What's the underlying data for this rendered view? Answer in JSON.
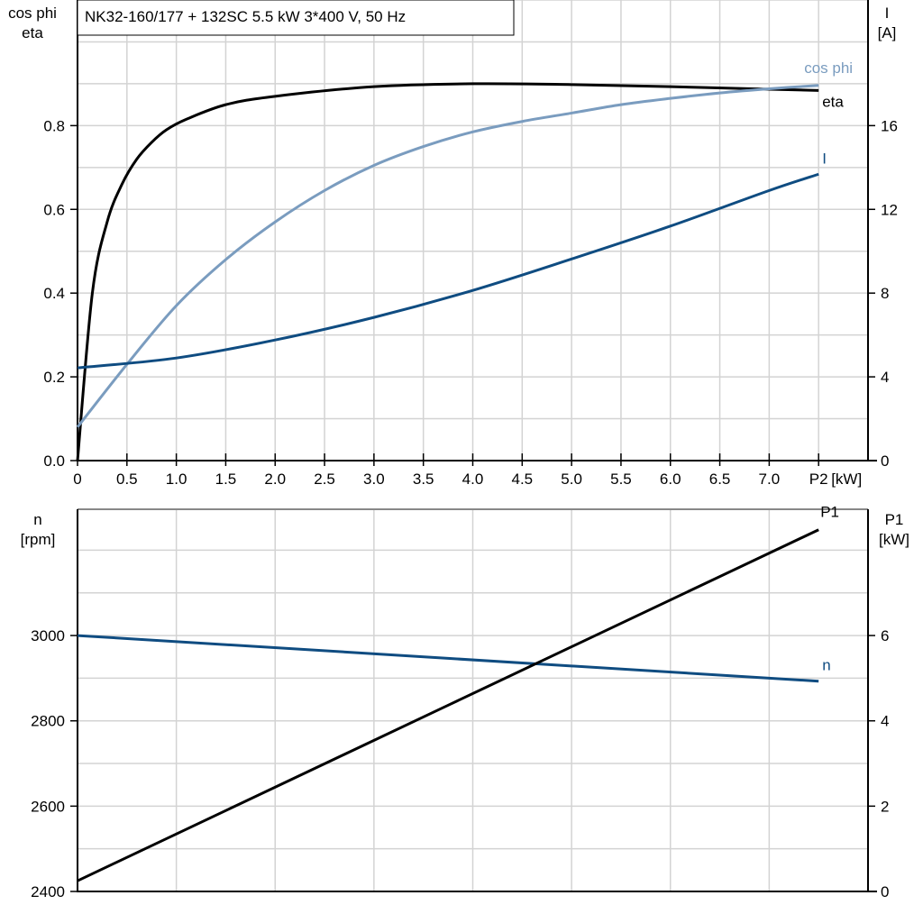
{
  "chart_data": [
    {
      "type": "line",
      "title": "NK32-160/177 + 132SC   5.5 kW   3*400 V, 50 Hz",
      "xlabel": "P2 [kW]",
      "xlabel_short": "P2",
      "xunit": "[kW]",
      "xlim": [
        0,
        8
      ],
      "xticks": [
        0,
        0.5,
        1.0,
        1.5,
        2.0,
        2.5,
        3.0,
        3.5,
        4.0,
        4.5,
        5.0,
        5.5,
        6.0,
        6.5,
        7.0
      ],
      "xtick_labels": [
        "0",
        "0.5",
        "1.0",
        "1.5",
        "2.0",
        "2.5",
        "3.0",
        "3.5",
        "4.0",
        "4.5",
        "5.0",
        "5.5",
        "6.0",
        "6.5",
        "7.0"
      ],
      "ylabel_left": [
        "cos phi",
        "eta"
      ],
      "ylim_left": [
        0,
        1.1
      ],
      "yticks_left": [
        "0.0",
        "0.2",
        "0.4",
        "0.6",
        "0.8"
      ],
      "ylabel_right": [
        "I",
        "[A]"
      ],
      "ylim_right": [
        0,
        22
      ],
      "yticks_right": [
        "0",
        "4",
        "8",
        "12",
        "16"
      ],
      "grid": true,
      "series": [
        {
          "name": "eta",
          "axis": "left",
          "color": "#000000",
          "x": [
            0,
            0.15,
            0.3,
            0.45,
            0.6,
            0.75,
            0.9,
            1.1,
            1.5,
            2,
            3,
            4,
            5,
            6,
            7,
            7.5
          ],
          "y": [
            0,
            0.4,
            0.57,
            0.66,
            0.72,
            0.76,
            0.79,
            0.815,
            0.85,
            0.87,
            0.893,
            0.9,
            0.898,
            0.893,
            0.887,
            0.884
          ]
        },
        {
          "name": "cos phi",
          "axis": "left",
          "color": "#7a9cbf",
          "x": [
            0,
            0.5,
            1,
            1.5,
            2,
            2.5,
            3,
            3.5,
            4,
            4.5,
            5,
            5.5,
            6,
            6.5,
            7,
            7.5
          ],
          "y": [
            0.08,
            0.23,
            0.37,
            0.48,
            0.57,
            0.645,
            0.705,
            0.75,
            0.785,
            0.81,
            0.83,
            0.85,
            0.865,
            0.878,
            0.888,
            0.896
          ]
        },
        {
          "name": "I",
          "axis": "right",
          "color": "#0f4c81",
          "x": [
            0,
            1,
            2,
            3,
            4,
            5,
            6,
            7,
            7.5
          ],
          "y": [
            4.43,
            4.9,
            5.76,
            6.84,
            8.13,
            9.63,
            11.2,
            12.9,
            13.68
          ]
        }
      ]
    },
    {
      "type": "line",
      "xlim": [
        0,
        8
      ],
      "ylabel_left": [
        "n",
        "[rpm]"
      ],
      "ylim_left": [
        2400,
        3296
      ],
      "yticks_left": [
        "2400",
        "2600",
        "2800",
        "3000"
      ],
      "ylabel_right": [
        "P1",
        "[kW]"
      ],
      "ylim_right": [
        0,
        8.96
      ],
      "yticks_right": [
        "0",
        "2",
        "4",
        "6"
      ],
      "grid": true,
      "series": [
        {
          "name": "n",
          "axis": "left",
          "color": "#0f4c81",
          "x": [
            0,
            7.5
          ],
          "y": [
            3000,
            2893
          ]
        },
        {
          "name": "P1",
          "axis": "right",
          "color": "#000000",
          "x": [
            0,
            7.5
          ],
          "y": [
            0.25,
            8.48
          ]
        }
      ]
    }
  ]
}
